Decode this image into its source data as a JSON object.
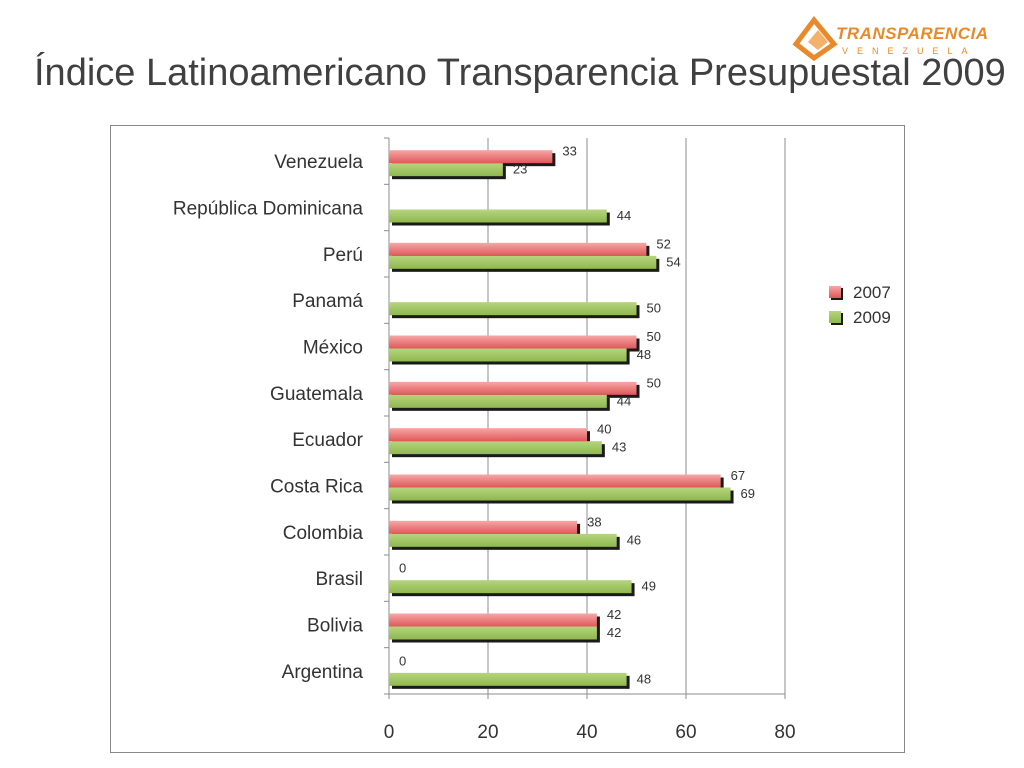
{
  "title": "Índice Latinoamericano Transparencia Presupuestal 2009",
  "logo": {
    "name": "TRANSPARENCIA",
    "sub": "VENEZUELA"
  },
  "colors": {
    "s2007": "#e0575a",
    "s2009": "#8fb84f",
    "title": "#404040",
    "logo": "#e88a2a"
  },
  "chart_data": {
    "type": "bar",
    "orientation": "horizontal",
    "title": "",
    "categories": [
      "Venezuela",
      "República Dominicana",
      "Perú",
      "Panamá",
      "México",
      "Guatemala",
      "Ecuador",
      "Costa Rica",
      "Colombia",
      "Brasil",
      "Bolivia",
      "Argentina"
    ],
    "series": [
      {
        "name": "2007",
        "values": [
          33,
          null,
          52,
          null,
          50,
          50,
          40,
          67,
          38,
          0,
          42,
          0
        ]
      },
      {
        "name": "2009",
        "values": [
          23,
          44,
          54,
          50,
          48,
          44,
          43,
          69,
          46,
          49,
          42,
          48
        ]
      }
    ],
    "xlim": [
      0,
      80
    ],
    "xticks": [
      "0",
      "20",
      "40",
      "60",
      "80"
    ],
    "grid": true,
    "legend_position": "right"
  }
}
